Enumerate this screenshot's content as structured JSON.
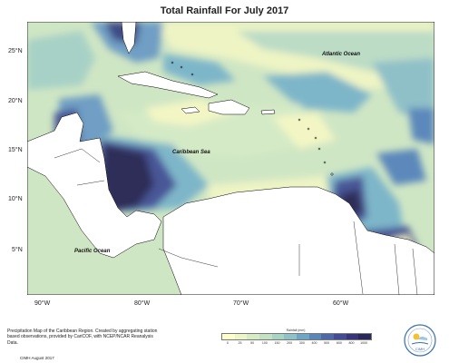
{
  "title": "Total Rainfall For July 2017",
  "map_labels": {
    "atlantic": "Atlantic Ocean",
    "caribbean": "Caribbean Sea",
    "pacific": "Pacific Ocean"
  },
  "lat_labels": [
    "25°N",
    "20°N",
    "15°N",
    "10°N",
    "5°N"
  ],
  "lon_labels": [
    "90°W",
    "80°W",
    "70°W",
    "60°W"
  ],
  "legend": {
    "title": "Rainfall (mm)",
    "ticks": [
      "0",
      "25",
      "50",
      "100",
      "150",
      "200",
      "300",
      "400",
      "500",
      "600",
      "800",
      "1000"
    ],
    "colors": [
      "#ffffcc",
      "#eef5c8",
      "#d8ecc4",
      "#c2e2c2",
      "#a8d4c4",
      "#8ec2c8",
      "#6fa6c4",
      "#5a87b8",
      "#4f68a8",
      "#444c93",
      "#383578",
      "#2a2858"
    ]
  },
  "footnote": "Precipitation Map of the Caribbean Region. Created by aggregating station based observations, provided by CariCOF, with NCEP/NCAR Reanalysis Data.",
  "credit": "CIMH August 2017",
  "logo_text": "CIMH",
  "colors": {
    "land": "#ffffff",
    "very_low": "#f3f6c4",
    "low": "#d4eac6",
    "mid": "#a7d1c6",
    "mid_high": "#7eb6c9",
    "high": "#5c88bb",
    "very_high": "#4a5797",
    "extreme": "#2e2f59"
  }
}
